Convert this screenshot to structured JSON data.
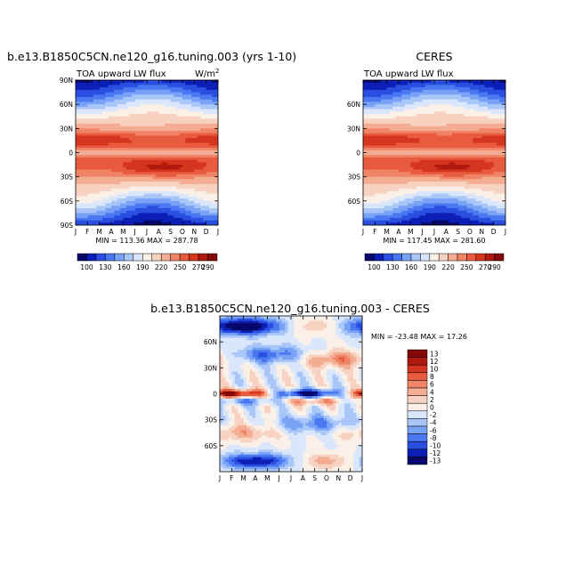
{
  "chart_data": [
    {
      "type": "heatmap",
      "title": "b.e13.B1850C5CN.ne120_g16.tuning.003 (yrs 1-10)",
      "subtitle_left": "TOA upward LW flux",
      "units": "W/m",
      "units_sup": "2",
      "x_ticks": [
        "J",
        "F",
        "M",
        "A",
        "M",
        "J",
        "J",
        "A",
        "S",
        "O",
        "N",
        "D",
        "J"
      ],
      "y_ticks": [
        "90N",
        "60N",
        "30N",
        "0",
        "30S",
        "60S",
        "90S"
      ],
      "stats": "MIN = 113.36 MAX = 287.78",
      "min": 113.36,
      "max": 287.78,
      "colorbar_labels": [
        "100",
        "130",
        "160",
        "190",
        "220",
        "250",
        "270",
        "290"
      ]
    },
    {
      "type": "heatmap",
      "title": "CERES",
      "subtitle_left": "TOA upward LW flux",
      "x_ticks": [
        "J",
        "F",
        "M",
        "A",
        "M",
        "J",
        "J",
        "A",
        "S",
        "O",
        "N",
        "D",
        "J"
      ],
      "y_ticks": [
        "60N",
        "30N",
        "0",
        "30S",
        "60S"
      ],
      "stats": "MIN = 117.45 MAX = 281.60",
      "min": 117.45,
      "max": 281.6,
      "colorbar_labels": [
        "100",
        "130",
        "160",
        "190",
        "220",
        "250",
        "270",
        "290"
      ]
    },
    {
      "type": "heatmap",
      "title": "b.e13.B1850C5CN.ne120_g16.tuning.003 - CERES",
      "x_ticks": [
        "J",
        "F",
        "M",
        "A",
        "M",
        "J",
        "J",
        "A",
        "S",
        "O",
        "N",
        "D",
        "J"
      ],
      "y_ticks": [
        "60N",
        "30N",
        "0",
        "30S",
        "60S"
      ],
      "stats": "MIN = -23.48 MAX =  17.26",
      "min": -23.48,
      "max": 17.26,
      "colorbar_labels": [
        "13",
        "12",
        "10",
        "8",
        "6",
        "4",
        "2",
        "0",
        "-2",
        "-4",
        "-6",
        "-8",
        "-10",
        "-12",
        "-13"
      ]
    }
  ],
  "colors": {
    "abs_scale": [
      "#08086a",
      "#0c1fb6",
      "#2a4fe0",
      "#4a78f0",
      "#78a2f6",
      "#a9c6f9",
      "#d9e6fb",
      "#fbf0e8",
      "#f8d2c0",
      "#f4ad92",
      "#ef8466",
      "#e85b3e",
      "#d5341e",
      "#b01a0e",
      "#850808"
    ],
    "diff_scale": [
      "#850808",
      "#b01a0e",
      "#d5341e",
      "#e85b3e",
      "#ef8466",
      "#f4ad92",
      "#f8d2c0",
      "#fbf0e8",
      "#d9e6fb",
      "#a9c6f9",
      "#78a2f6",
      "#4a78f0",
      "#2a4fe0",
      "#0c1fb6",
      "#08086a"
    ]
  }
}
